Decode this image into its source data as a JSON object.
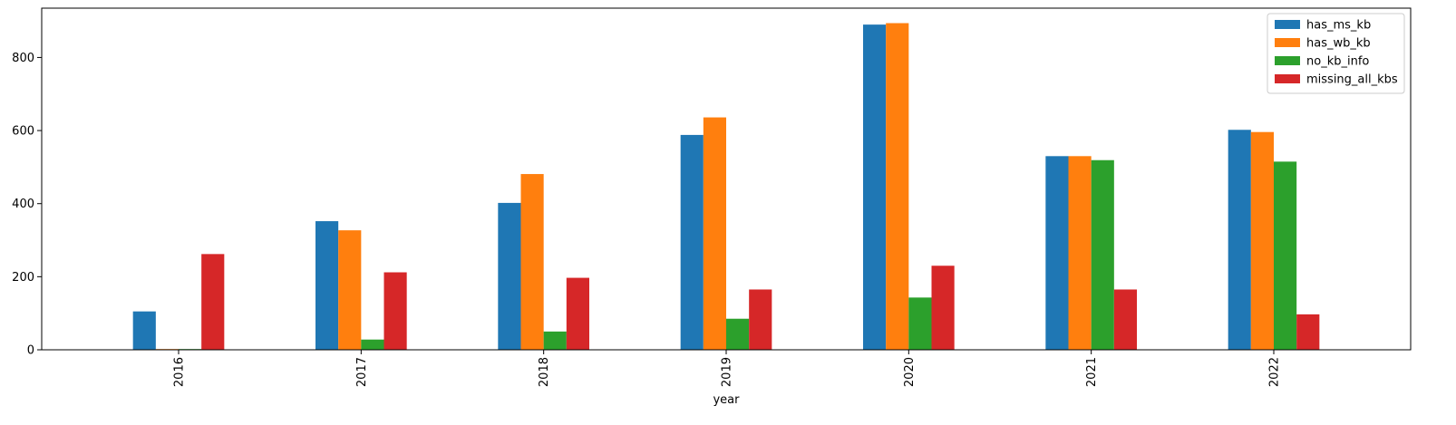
{
  "chart_data": {
    "type": "bar",
    "title": "",
    "xlabel": "year",
    "ylabel": "",
    "ylim": [
      0,
      935
    ],
    "yticks": [
      0,
      200,
      400,
      600,
      800
    ],
    "grid": false,
    "legend_position": "top-right",
    "categories": [
      "2016",
      "2017",
      "2018",
      "2019",
      "2020",
      "2021",
      "2022"
    ],
    "series": [
      {
        "name": "has_ms_kb",
        "color": "#1f77b4",
        "values": [
          105,
          352,
          402,
          588,
          890,
          530,
          602
        ]
      },
      {
        "name": "has_wb_kb",
        "color": "#ff7f0e",
        "values": [
          2,
          327,
          481,
          636,
          894,
          530,
          596
        ]
      },
      {
        "name": "no_kb_info",
        "color": "#2ca02c",
        "values": [
          2,
          28,
          50,
          85,
          143,
          519,
          515
        ]
      },
      {
        "name": "missing_all_kbs",
        "color": "#d62728",
        "values": [
          262,
          212,
          197,
          165,
          230,
          165,
          97
        ]
      }
    ]
  }
}
